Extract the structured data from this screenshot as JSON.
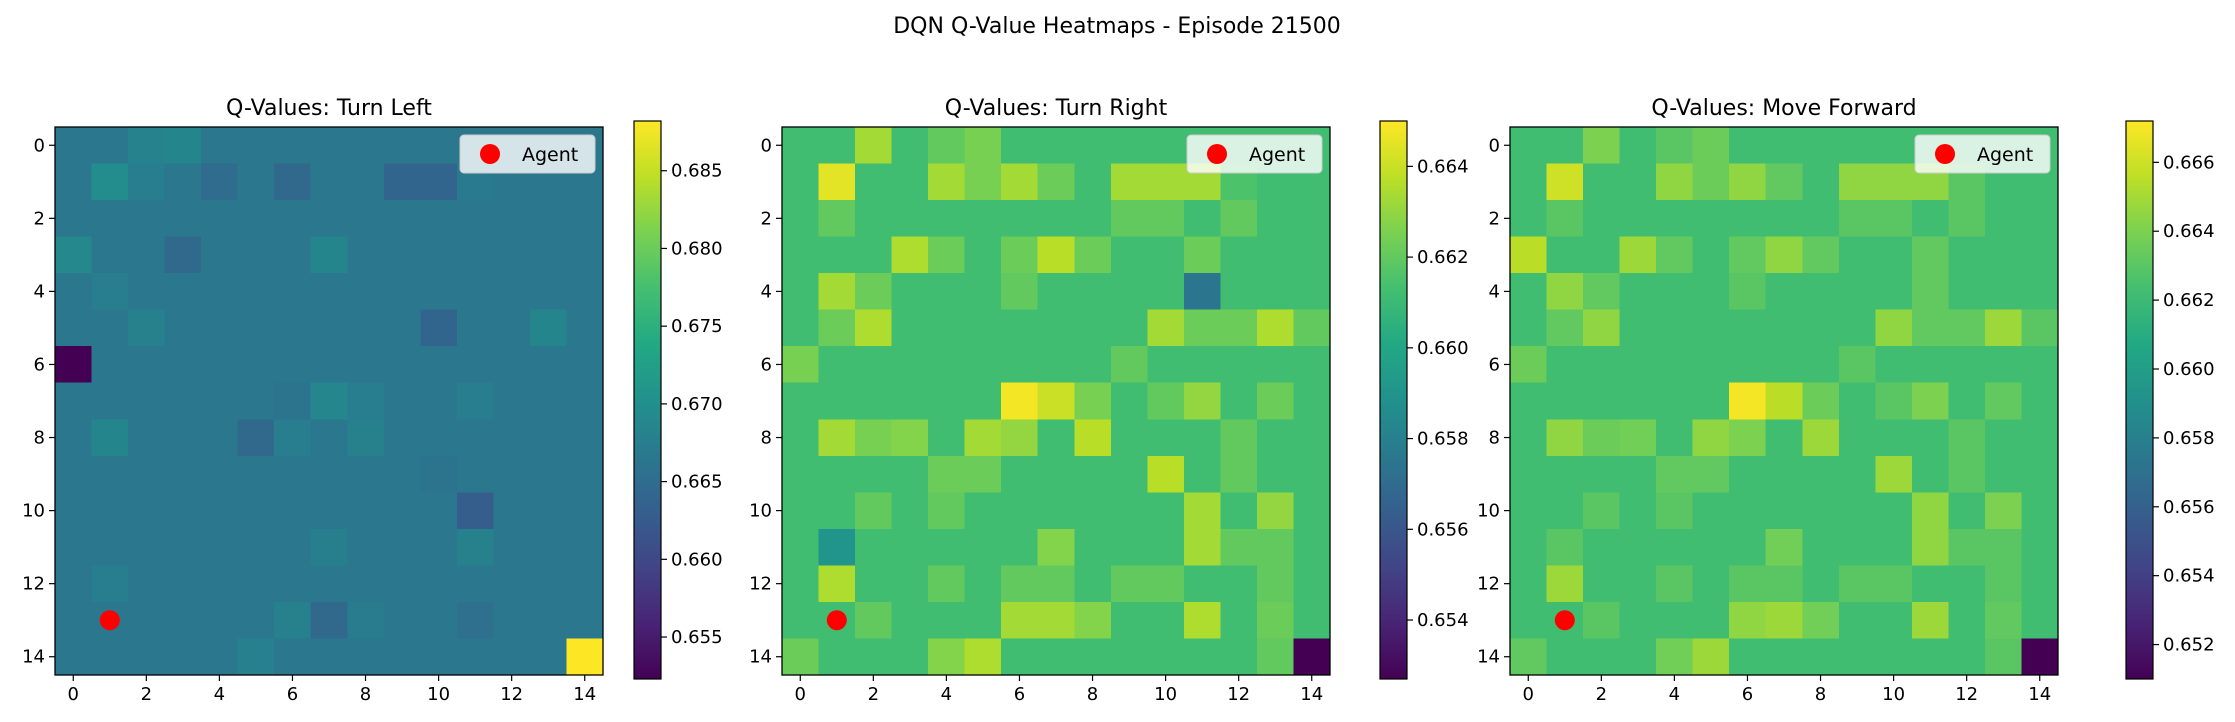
{
  "figure": {
    "suptitle": "DQN Q-Value Heatmaps - Episode 21500"
  },
  "chart_data": [
    {
      "type": "heatmap",
      "title": "Q-Values: Turn Left",
      "grid_size": 15,
      "xticks": [
        0,
        2,
        4,
        6,
        8,
        10,
        12,
        14
      ],
      "yticks": [
        0,
        2,
        4,
        6,
        8,
        10,
        12,
        14
      ],
      "colormap": "viridis",
      "vmin": 0.6523,
      "vmax": 0.6882,
      "colorbar_ticks": [
        0.655,
        0.66,
        0.665,
        0.67,
        0.675,
        0.68,
        0.685
      ],
      "colorbar_labels": [
        "0.655",
        "0.660",
        "0.665",
        "0.670",
        "0.675",
        "0.680",
        "0.685"
      ],
      "default_value": 0.6665,
      "cells": [
        [
          0,
          2,
          0.6683
        ],
        [
          0,
          3,
          0.6685
        ],
        [
          1,
          1,
          0.6695
        ],
        [
          1,
          2,
          0.6675
        ],
        [
          1,
          4,
          0.665
        ],
        [
          1,
          6,
          0.6645
        ],
        [
          1,
          9,
          0.664
        ],
        [
          1,
          10,
          0.664
        ],
        [
          1,
          11,
          0.667
        ],
        [
          3,
          0,
          0.669
        ],
        [
          3,
          3,
          0.6645
        ],
        [
          3,
          7,
          0.6685
        ],
        [
          4,
          1,
          0.6675
        ],
        [
          5,
          2,
          0.668
        ],
        [
          5,
          10,
          0.664
        ],
        [
          5,
          13,
          0.6685
        ],
        [
          6,
          0,
          0.6523
        ],
        [
          7,
          6,
          0.666
        ],
        [
          7,
          7,
          0.6688
        ],
        [
          7,
          8,
          0.6675
        ],
        [
          7,
          11,
          0.6675
        ],
        [
          8,
          1,
          0.6685
        ],
        [
          8,
          5,
          0.6645
        ],
        [
          8,
          6,
          0.6675
        ],
        [
          8,
          8,
          0.668
        ],
        [
          9,
          10,
          0.666
        ],
        [
          10,
          11,
          0.663
        ],
        [
          11,
          11,
          0.668
        ],
        [
          11,
          7,
          0.6677
        ],
        [
          12,
          1,
          0.6675
        ],
        [
          13,
          6,
          0.668
        ],
        [
          13,
          7,
          0.6645
        ],
        [
          13,
          8,
          0.6672
        ],
        [
          13,
          11,
          0.6655
        ],
        [
          14,
          5,
          0.6678
        ],
        [
          14,
          14,
          0.6882
        ]
      ],
      "agent": {
        "x": 1,
        "y": 13,
        "color": "#ff0000"
      },
      "legend": {
        "label": "Agent",
        "loc": "upper right"
      }
    },
    {
      "type": "heatmap",
      "title": "Q-Values: Turn Right",
      "grid_size": 15,
      "xticks": [
        0,
        2,
        4,
        6,
        8,
        10,
        12,
        14
      ],
      "yticks": [
        0,
        2,
        4,
        6,
        8,
        10,
        12,
        14
      ],
      "colormap": "viridis",
      "vmin": 0.6527,
      "vmax": 0.665,
      "colorbar_ticks": [
        0.654,
        0.656,
        0.658,
        0.66,
        0.662,
        0.664
      ],
      "colorbar_labels": [
        "0.654",
        "0.656",
        "0.658",
        "0.660",
        "0.662",
        "0.664"
      ],
      "default_value": 0.6612,
      "cells": [
        [
          0,
          2,
          0.6633
        ],
        [
          0,
          4,
          0.662
        ],
        [
          0,
          5,
          0.6625
        ],
        [
          1,
          1,
          0.6645
        ],
        [
          1,
          4,
          0.6633
        ],
        [
          1,
          5,
          0.6625
        ],
        [
          1,
          6,
          0.6633
        ],
        [
          1,
          7,
          0.6622
        ],
        [
          1,
          9,
          0.6633
        ],
        [
          1,
          10,
          0.6633
        ],
        [
          1,
          11,
          0.6633
        ],
        [
          1,
          12,
          0.6615
        ],
        [
          2,
          1,
          0.662
        ],
        [
          2,
          9,
          0.662
        ],
        [
          2,
          10,
          0.662
        ],
        [
          2,
          12,
          0.662
        ],
        [
          3,
          3,
          0.6635
        ],
        [
          3,
          4,
          0.6622
        ],
        [
          3,
          6,
          0.6622
        ],
        [
          3,
          7,
          0.6637
        ],
        [
          3,
          8,
          0.6622
        ],
        [
          3,
          11,
          0.6622
        ],
        [
          4,
          1,
          0.6633
        ],
        [
          4,
          2,
          0.6622
        ],
        [
          4,
          6,
          0.662
        ],
        [
          4,
          11,
          0.6575
        ],
        [
          5,
          1,
          0.6622
        ],
        [
          5,
          2,
          0.6635
        ],
        [
          5,
          10,
          0.6633
        ],
        [
          5,
          11,
          0.6622
        ],
        [
          5,
          12,
          0.6622
        ],
        [
          5,
          13,
          0.6635
        ],
        [
          5,
          14,
          0.662
        ],
        [
          6,
          0,
          0.6625
        ],
        [
          6,
          9,
          0.662
        ],
        [
          7,
          6,
          0.6648
        ],
        [
          7,
          7,
          0.664
        ],
        [
          7,
          8,
          0.6625
        ],
        [
          7,
          10,
          0.662
        ],
        [
          7,
          11,
          0.663
        ],
        [
          7,
          13,
          0.6622
        ],
        [
          8,
          1,
          0.6633
        ],
        [
          8,
          2,
          0.6625
        ],
        [
          8,
          3,
          0.6627
        ],
        [
          8,
          5,
          0.6633
        ],
        [
          8,
          6,
          0.663
        ],
        [
          8,
          8,
          0.6637
        ],
        [
          8,
          12,
          0.662
        ],
        [
          9,
          4,
          0.6622
        ],
        [
          9,
          5,
          0.6622
        ],
        [
          9,
          10,
          0.6637
        ],
        [
          9,
          12,
          0.662
        ],
        [
          10,
          2,
          0.662
        ],
        [
          10,
          4,
          0.662
        ],
        [
          10,
          11,
          0.6633
        ],
        [
          10,
          13,
          0.663
        ],
        [
          11,
          1,
          0.659
        ],
        [
          11,
          7,
          0.6627
        ],
        [
          11,
          11,
          0.6633
        ],
        [
          11,
          12,
          0.662
        ],
        [
          11,
          13,
          0.662
        ],
        [
          12,
          1,
          0.6635
        ],
        [
          12,
          4,
          0.662
        ],
        [
          12,
          6,
          0.662
        ],
        [
          12,
          7,
          0.662
        ],
        [
          12,
          9,
          0.662
        ],
        [
          12,
          10,
          0.662
        ],
        [
          12,
          13,
          0.662
        ],
        [
          13,
          2,
          0.662
        ],
        [
          13,
          6,
          0.6633
        ],
        [
          13,
          7,
          0.6633
        ],
        [
          13,
          8,
          0.6627
        ],
        [
          13,
          11,
          0.6635
        ],
        [
          13,
          13,
          0.6622
        ],
        [
          14,
          0,
          0.6622
        ],
        [
          14,
          4,
          0.6627
        ],
        [
          14,
          5,
          0.6635
        ],
        [
          14,
          13,
          0.662
        ],
        [
          14,
          14,
          0.6527
        ]
      ],
      "agent": {
        "x": 1,
        "y": 13,
        "color": "#ff0000"
      },
      "legend": {
        "label": "Agent",
        "loc": "upper right"
      }
    },
    {
      "type": "heatmap",
      "title": "Q-Values: Move Forward",
      "grid_size": 15,
      "xticks": [
        0,
        2,
        4,
        6,
        8,
        10,
        12,
        14
      ],
      "yticks": [
        0,
        2,
        4,
        6,
        8,
        10,
        12,
        14
      ],
      "colormap": "viridis",
      "vmin": 0.651,
      "vmax": 0.6672,
      "colorbar_ticks": [
        0.652,
        0.654,
        0.656,
        0.658,
        0.66,
        0.662,
        0.664,
        0.666
      ],
      "colorbar_labels": [
        "0.652",
        "0.654",
        "0.656",
        "0.658",
        "0.660",
        "0.662",
        "0.664",
        "0.666"
      ],
      "default_value": 0.6622,
      "cells": [
        [
          0,
          2,
          0.664
        ],
        [
          0,
          4,
          0.663
        ],
        [
          0,
          5,
          0.6635
        ],
        [
          1,
          1,
          0.666
        ],
        [
          1,
          4,
          0.6645
        ],
        [
          1,
          5,
          0.6635
        ],
        [
          1,
          6,
          0.6645
        ],
        [
          1,
          7,
          0.6632
        ],
        [
          1,
          9,
          0.6645
        ],
        [
          1,
          10,
          0.6645
        ],
        [
          1,
          11,
          0.6645
        ],
        [
          1,
          12,
          0.663
        ],
        [
          2,
          1,
          0.663
        ],
        [
          2,
          9,
          0.663
        ],
        [
          2,
          10,
          0.663
        ],
        [
          2,
          12,
          0.663
        ],
        [
          3,
          0,
          0.6655
        ],
        [
          3,
          3,
          0.6648
        ],
        [
          3,
          4,
          0.6632
        ],
        [
          3,
          6,
          0.6632
        ],
        [
          3,
          7,
          0.6645
        ],
        [
          3,
          8,
          0.6632
        ],
        [
          3,
          11,
          0.6632
        ],
        [
          4,
          1,
          0.6645
        ],
        [
          4,
          2,
          0.6632
        ],
        [
          4,
          6,
          0.663
        ],
        [
          4,
          11,
          0.6632
        ],
        [
          5,
          1,
          0.6632
        ],
        [
          5,
          2,
          0.6645
        ],
        [
          5,
          10,
          0.6645
        ],
        [
          5,
          11,
          0.6632
        ],
        [
          5,
          12,
          0.6632
        ],
        [
          5,
          13,
          0.6648
        ],
        [
          5,
          14,
          0.663
        ],
        [
          6,
          0,
          0.6635
        ],
        [
          6,
          9,
          0.663
        ],
        [
          7,
          6,
          0.667
        ],
        [
          7,
          7,
          0.6655
        ],
        [
          7,
          8,
          0.6635
        ],
        [
          7,
          10,
          0.663
        ],
        [
          7,
          11,
          0.664
        ],
        [
          7,
          13,
          0.6632
        ],
        [
          8,
          1,
          0.6645
        ],
        [
          8,
          2,
          0.6635
        ],
        [
          8,
          3,
          0.6637
        ],
        [
          8,
          5,
          0.6645
        ],
        [
          8,
          6,
          0.664
        ],
        [
          8,
          8,
          0.6648
        ],
        [
          8,
          12,
          0.663
        ],
        [
          9,
          4,
          0.6632
        ],
        [
          9,
          5,
          0.6632
        ],
        [
          9,
          10,
          0.6648
        ],
        [
          9,
          12,
          0.663
        ],
        [
          10,
          2,
          0.663
        ],
        [
          10,
          4,
          0.663
        ],
        [
          10,
          11,
          0.6645
        ],
        [
          10,
          13,
          0.664
        ],
        [
          11,
          1,
          0.663
        ],
        [
          11,
          7,
          0.6637
        ],
        [
          11,
          11,
          0.6645
        ],
        [
          11,
          12,
          0.663
        ],
        [
          11,
          13,
          0.663
        ],
        [
          12,
          1,
          0.6648
        ],
        [
          12,
          4,
          0.663
        ],
        [
          12,
          6,
          0.663
        ],
        [
          12,
          7,
          0.663
        ],
        [
          12,
          9,
          0.663
        ],
        [
          12,
          10,
          0.663
        ],
        [
          12,
          13,
          0.663
        ],
        [
          13,
          2,
          0.663
        ],
        [
          13,
          6,
          0.6645
        ],
        [
          13,
          7,
          0.6648
        ],
        [
          13,
          8,
          0.6637
        ],
        [
          13,
          11,
          0.6648
        ],
        [
          13,
          13,
          0.6632
        ],
        [
          14,
          0,
          0.6632
        ],
        [
          14,
          4,
          0.6637
        ],
        [
          14,
          5,
          0.6648
        ],
        [
          14,
          13,
          0.663
        ],
        [
          14,
          14,
          0.651
        ]
      ],
      "agent": {
        "x": 1,
        "y": 13,
        "color": "#ff0000"
      },
      "legend": {
        "label": "Agent",
        "loc": "upper right"
      }
    }
  ]
}
